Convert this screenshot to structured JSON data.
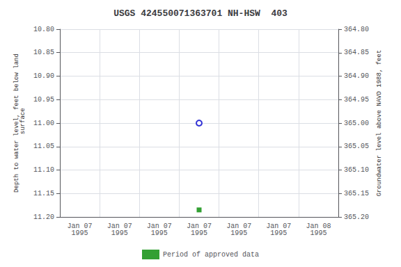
{
  "chart_data": {
    "type": "scatter",
    "title": "USGS 424550071363701 NH-HSW  403",
    "ylabel": "Depth to water level, feet below land\n surface",
    "y2label": "Groundwater level above NAVD 1988, feet",
    "categories": [
      "Jan 07\n1995",
      "Jan 07\n1995",
      "Jan 07\n1995",
      "Jan 07\n1995",
      "Jan 07\n1995",
      "Jan 07\n1995",
      "Jan 08\n1995"
    ],
    "series": [
      {
        "color": "#0000cc",
        "marker": "circle",
        "values": [
          null,
          null,
          null,
          11.0,
          null,
          null,
          null
        ]
      },
      {
        "name": "Period of approved data",
        "color": "#008800",
        "marker": "square",
        "values": [
          null,
          null,
          null,
          11.185,
          null,
          null,
          null
        ]
      }
    ],
    "ylim": [
      11.2,
      10.8
    ],
    "yticks": [
      {
        "value": 10.8,
        "label": "10.80"
      },
      10.85,
      {
        "value": 10.9,
        "label": "10.90"
      },
      10.95,
      {
        "value": 11.0,
        "label": "11.00"
      },
      11.05,
      {
        "value": 11.1,
        "label": "11.10"
      },
      11.15,
      {
        "value": 11.2,
        "label": "11.20"
      }
    ],
    "y2lim": [
      365.2,
      364.8
    ],
    "y2ticks": [
      {
        "value": 364.8,
        "label": "364.80"
      },
      364.85,
      {
        "value": 364.9,
        "label": "364.90"
      },
      364.95,
      {
        "value": 365.0,
        "label": "365.00"
      },
      365.05,
      {
        "value": 365.1,
        "label": "365.10"
      },
      365.15,
      {
        "value": 365.2,
        "label": "365.20"
      }
    ],
    "grid": true,
    "legend": "bottom"
  }
}
